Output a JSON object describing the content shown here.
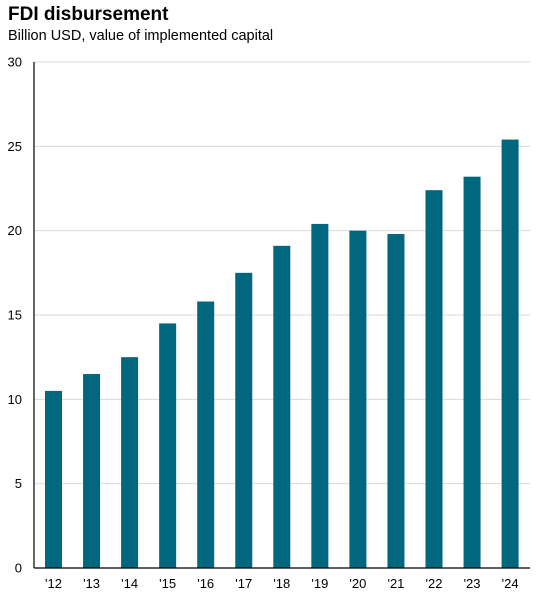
{
  "chart_data": {
    "type": "bar",
    "title": "FDI disbursement",
    "subtitle": "Billion USD, value of implemented capital",
    "categories": [
      "'12",
      "'13",
      "'14",
      "'15",
      "'16",
      "'17",
      "'18",
      "'19",
      "'20",
      "'21",
      "'22",
      "'23",
      "'24"
    ],
    "values": [
      10.5,
      11.5,
      12.5,
      14.5,
      15.8,
      17.5,
      19.1,
      20.4,
      20.0,
      19.8,
      22.4,
      23.2,
      25.4
    ],
    "yticks": [
      0,
      5,
      10,
      15,
      20,
      25,
      30
    ],
    "ylim": [
      0,
      30
    ],
    "xlabel": "",
    "ylabel": "",
    "grid": true,
    "bar_color": "#00677f",
    "grid_color": "#d9d9d9"
  }
}
